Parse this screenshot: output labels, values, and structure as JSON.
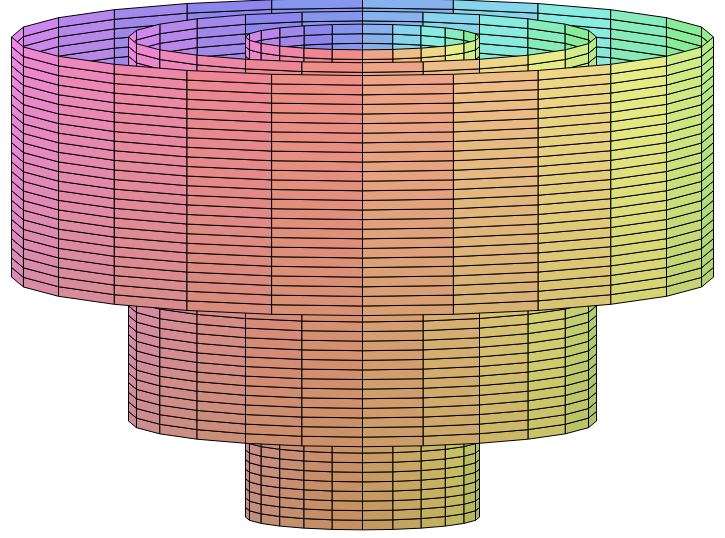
{
  "chart_data": {
    "type": "revolution_surface",
    "tick_labels": false,
    "radii": [
      1,
      2,
      3
    ],
    "z_bottom": [
      0,
      1,
      2.5
    ],
    "z_top": [
      5,
      5,
      5
    ]
  }
}
